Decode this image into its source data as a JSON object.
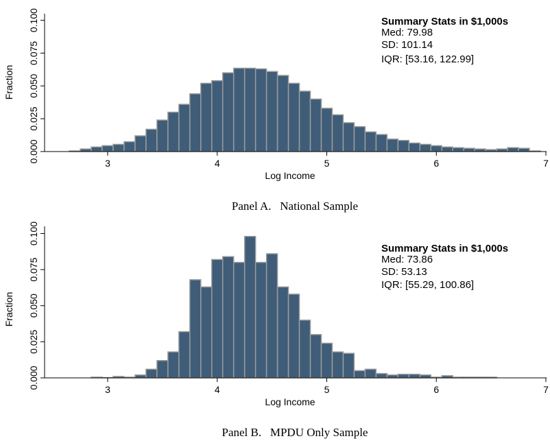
{
  "colors": {
    "bar_fill": "#3f5d78",
    "bar_stroke": "#9c9c9c",
    "axis": "#000000"
  },
  "chart_data": [
    {
      "type": "bar",
      "caption": "Panel A.   National Sample",
      "xlabel": "Log Income",
      "ylabel": "Fraction",
      "xlim": [
        2.35,
        7.05
      ],
      "ylim": [
        0,
        0.105
      ],
      "xticks": [
        "3",
        "4",
        "5",
        "6",
        "7"
      ],
      "yticks": [
        "0.000",
        "0.025",
        "0.050",
        "0.075",
        "0.100"
      ],
      "bin_width": 0.1,
      "x": [
        2.7,
        2.8,
        2.9,
        3.0,
        3.1,
        3.2,
        3.3,
        3.4,
        3.5,
        3.6,
        3.7,
        3.8,
        3.9,
        4.0,
        4.1,
        4.2,
        4.3,
        4.4,
        4.5,
        4.6,
        4.7,
        4.8,
        4.9,
        5.0,
        5.1,
        5.2,
        5.3,
        5.4,
        5.5,
        5.6,
        5.7,
        5.8,
        5.9,
        6.0,
        6.1,
        6.2,
        6.3,
        6.4,
        6.5,
        6.6,
        6.7,
        6.8,
        6.9
      ],
      "values": [
        0.0005,
        0.002,
        0.0035,
        0.0045,
        0.0055,
        0.0075,
        0.012,
        0.017,
        0.024,
        0.03,
        0.036,
        0.044,
        0.052,
        0.054,
        0.06,
        0.0635,
        0.0635,
        0.063,
        0.061,
        0.058,
        0.052,
        0.046,
        0.04,
        0.033,
        0.028,
        0.022,
        0.019,
        0.015,
        0.013,
        0.0095,
        0.0085,
        0.0065,
        0.0055,
        0.0045,
        0.0035,
        0.003,
        0.0025,
        0.002,
        0.0015,
        0.002,
        0.003,
        0.0025,
        0.0005
      ],
      "stats_title": "Summary Stats in $1,000s",
      "stats": [
        "Med: 79.98",
        "SD: 101.14",
        "IQR: [53.16, 122.99]"
      ]
    },
    {
      "type": "bar",
      "caption": "Panel B.   MPDU Only Sample",
      "xlabel": "Log Income",
      "ylabel": "Fraction",
      "xlim": [
        2.35,
        7.05
      ],
      "ylim": [
        0,
        0.105
      ],
      "xticks": [
        "3",
        "4",
        "5",
        "6",
        "7"
      ],
      "yticks": [
        "0.000",
        "0.025",
        "0.050",
        "0.075",
        "0.100"
      ],
      "bin_width": 0.1,
      "x": [
        2.9,
        3.0,
        3.1,
        3.2,
        3.3,
        3.4,
        3.5,
        3.6,
        3.7,
        3.8,
        3.9,
        4.0,
        4.1,
        4.2,
        4.3,
        4.4,
        4.5,
        4.6,
        4.7,
        4.8,
        4.9,
        5.0,
        5.1,
        5.2,
        5.3,
        5.4,
        5.5,
        5.6,
        5.7,
        5.8,
        5.9,
        6.0,
        6.1,
        6.2,
        6.3,
        6.4,
        6.5
      ],
      "values": [
        0.0005,
        0.0002,
        0.001,
        0.0005,
        0.002,
        0.006,
        0.012,
        0.018,
        0.032,
        0.068,
        0.063,
        0.082,
        0.084,
        0.08,
        0.098,
        0.08,
        0.086,
        0.063,
        0.058,
        0.04,
        0.03,
        0.024,
        0.018,
        0.017,
        0.005,
        0.006,
        0.003,
        0.002,
        0.0025,
        0.0025,
        0.002,
        0.0005,
        0.0015,
        0.0005,
        0.0005,
        0.0005,
        0.0005
      ],
      "stats_title": "Summary Stats in $1,000s",
      "stats": [
        "Med: 73.86",
        "SD: 53.13",
        "IQR: [55.29, 100.86]"
      ]
    }
  ]
}
